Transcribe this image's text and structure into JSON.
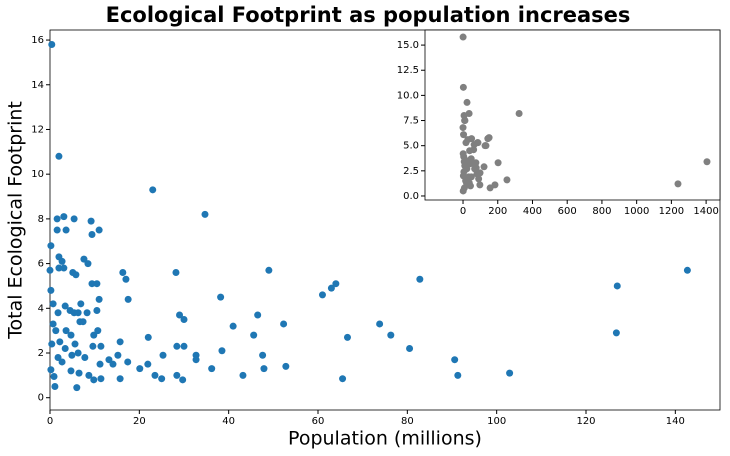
{
  "chart_data": [
    {
      "type": "scatter",
      "title": "Ecological Footprint as population increases",
      "x_label": "Population (millions)",
      "y_label": "Total Ecological Footprint",
      "color": "#1f77b4",
      "xlim": [
        0,
        150
      ],
      "ylim": [
        -0.55,
        16.45
      ],
      "xticks": [
        0,
        20,
        40,
        60,
        80,
        100,
        120,
        140
      ],
      "yticks": [
        0,
        2,
        4,
        6,
        8,
        10,
        12,
        14,
        16
      ],
      "x": [
        0.4,
        2,
        23,
        34.7,
        1.6,
        3.1,
        5.4,
        9.2,
        11,
        9.4,
        3.6,
        1.6,
        0.2,
        7.6,
        8.5,
        2,
        2.7,
        2,
        3.1,
        5.1,
        5.8,
        9.4,
        10.5,
        16.3,
        17,
        28.2,
        49,
        142.7,
        127,
        82.8,
        64,
        63,
        61,
        0,
        0.2,
        17.5,
        38.2,
        11,
        3.4,
        6.9,
        0.7,
        1.8,
        4.5,
        5.4,
        6.3,
        8.3,
        10.5,
        46.5,
        29,
        30,
        41,
        52.3,
        73.8,
        76.3,
        45.6,
        66.6,
        22,
        126.8,
        80.5,
        0.7,
        1.3,
        3.6,
        4.7,
        6.7,
        7.4,
        9.8,
        10.7,
        0.4,
        2.2,
        3.4,
        5.6,
        9.6,
        11.4,
        15.7,
        28.4,
        30,
        38.5,
        47.6,
        32.7,
        25.3,
        15.2,
        13.2,
        1.8,
        4.9,
        6.3,
        7.8,
        90.6,
        2.7,
        11.2,
        14.1,
        17.4,
        21.9,
        20.1,
        32.7,
        36.2,
        47.9,
        52.8,
        91.3,
        102.9,
        43.2,
        28.4,
        23.5,
        25,
        29.7,
        65.5,
        15.7,
        9.8,
        11.4,
        6,
        1.1,
        0.2,
        4.7,
        6.5,
        8.7,
        0.9
      ],
      "values": [
        15.8,
        10.8,
        9.3,
        8.2,
        8.0,
        8.1,
        8.0,
        7.9,
        7.5,
        7.3,
        7.5,
        7.5,
        6.8,
        6.2,
        6.0,
        6.3,
        6.1,
        5.8,
        5.8,
        5.6,
        5.5,
        5.1,
        5.1,
        5.6,
        5.3,
        5.6,
        5.7,
        5.7,
        5.0,
        5.3,
        5.1,
        4.9,
        4.6,
        5.7,
        4.8,
        4.4,
        4.5,
        4.4,
        4.1,
        4.2,
        4.2,
        3.8,
        3.9,
        3.8,
        3.8,
        3.8,
        3.9,
        3.7,
        3.7,
        3.5,
        3.2,
        3.3,
        3.3,
        2.8,
        2.8,
        2.7,
        2.7,
        2.9,
        2.2,
        3.3,
        3.0,
        3.0,
        2.8,
        3.4,
        3.4,
        2.8,
        3.0,
        2.4,
        2.5,
        2.2,
        2.4,
        2.3,
        2.3,
        2.5,
        2.3,
        2.3,
        2.1,
        1.9,
        1.9,
        1.9,
        1.9,
        1.7,
        1.8,
        1.9,
        2.0,
        1.8,
        1.7,
        1.6,
        1.5,
        1.5,
        1.6,
        1.5,
        1.3,
        1.7,
        1.3,
        1.3,
        1.4,
        1.0,
        1.1,
        1.0,
        1.0,
        1.0,
        0.85,
        0.8,
        0.85,
        0.85,
        0.8,
        0.85,
        0.45,
        0.5,
        1.25,
        1.2,
        1.1,
        1.0,
        0.95
      ]
    },
    {
      "type": "scatter",
      "color": "#808080",
      "xlim": [
        -219,
        1480
      ],
      "ylim": [
        -0.4,
        16.5
      ],
      "xticks": [
        0,
        200,
        400,
        600,
        800,
        1000,
        1200,
        1400
      ],
      "yticks": [
        {
          "value": 0,
          "label": "0.0"
        },
        {
          "value": 2.5,
          "label": "2.5"
        },
        {
          "value": 5,
          "label": "5.0"
        },
        {
          "value": 7.5,
          "label": "7.5"
        },
        {
          "value": 10,
          "label": "10.0"
        },
        {
          "value": 12.5,
          "label": "12.5"
        },
        {
          "value": 15,
          "label": "15.0"
        }
      ],
      "x": [
        0.4,
        2,
        23,
        35,
        6,
        9,
        11,
        0,
        3,
        17,
        28,
        49,
        143,
        127,
        83,
        64,
        61,
        1,
        38,
        4,
        7,
        10,
        47,
        30,
        41,
        52,
        74,
        76,
        67,
        22,
        121,
        80,
        5,
        2,
        48,
        33,
        25,
        15,
        90,
        20,
        36,
        97,
        43,
        8,
        1,
        1405,
        1238,
        323,
        253,
        202,
        150,
        132,
        184,
        156,
        98,
        86
      ],
      "values": [
        15.8,
        10.8,
        9.3,
        8.2,
        8.0,
        7.5,
        7.5,
        6.8,
        6.1,
        5.3,
        5.6,
        5.7,
        5.7,
        5.0,
        5.3,
        5.1,
        4.6,
        4.2,
        4.5,
        3.9,
        3.4,
        3.0,
        3.7,
        3.5,
        3.2,
        3.3,
        3.3,
        2.8,
        2.7,
        2.7,
        2.9,
        2.2,
        2.4,
        2.0,
        1.9,
        1.9,
        1.5,
        1.5,
        1.7,
        1.3,
        1.3,
        1.1,
        1.0,
        0.8,
        0.5,
        3.4,
        1.2,
        8.2,
        1.6,
        3.3,
        5.8,
        5.0,
        1.1,
        0.8,
        2.3,
        5.3
      ]
    }
  ]
}
